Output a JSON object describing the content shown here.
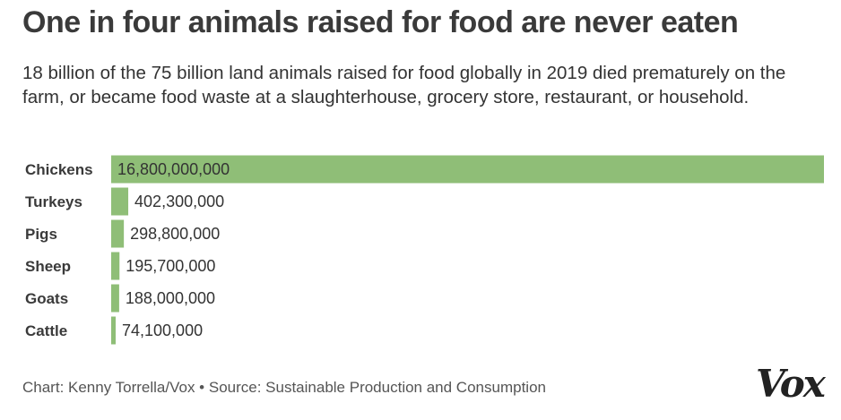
{
  "header": {
    "title": "One in four animals raised for food are never eaten",
    "subtitle": "18 billion of the 75 billion land animals raised for food globally in 2019 died prematurely on the farm, or became food waste at a slaughterhouse, grocery store, restaurant, or household."
  },
  "footer": {
    "credit": "Chart: Kenny Torrella/Vox • Source: Sustainable Production and Consumption",
    "logo": "Vox"
  },
  "colors": {
    "bar": "#8fbe77",
    "label": "#3a3a3a",
    "value_text": "#333333"
  },
  "chart_data": {
    "type": "bar",
    "orientation": "horizontal",
    "categories": [
      "Chickens",
      "Turkeys",
      "Pigs",
      "Sheep",
      "Goats",
      "Cattle"
    ],
    "values": [
      16800000000,
      402300000,
      298800000,
      195700000,
      188000000,
      74100000
    ],
    "value_labels": [
      "16,800,000,000",
      "402,300,000",
      "298,800,000",
      "195,700,000",
      "188,000,000",
      "74,100,000"
    ],
    "xlim": [
      0,
      16800000000
    ],
    "grid": false,
    "legend": "none"
  }
}
